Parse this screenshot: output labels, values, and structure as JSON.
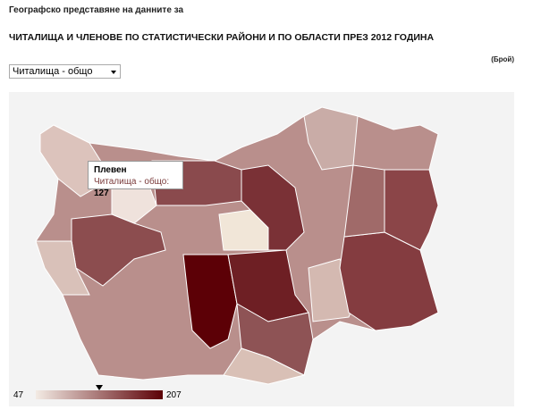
{
  "header": {
    "subtitle": "Географско представяне на данните за",
    "title": "ЧИТАЛИЩА И ЧЛЕНОВЕ ПО СТАТИСТИЧЕСКИ РАЙОНИ И ПО ОБЛАСТИ ПРЕЗ 2012 ГОДИНА",
    "unit": "(Брой)"
  },
  "dropdown": {
    "selected": "Читалища - общо"
  },
  "tooltip": {
    "region": "Плевен",
    "label": "Читалища - общо:",
    "value": 127
  },
  "legend": {
    "min": 47,
    "max": 207
  }
}
